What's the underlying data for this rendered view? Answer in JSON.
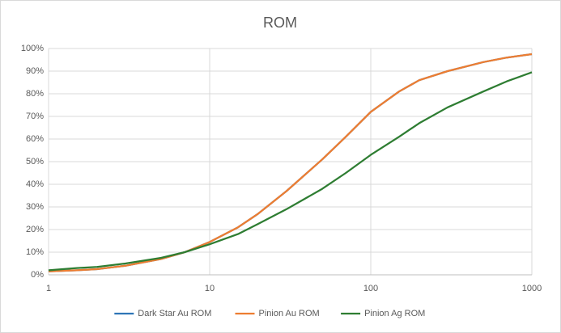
{
  "chart_data": {
    "type": "line",
    "title": "ROM",
    "x": [
      1,
      1.5,
      2,
      3,
      5,
      7,
      10,
      15,
      20,
      30,
      50,
      70,
      100,
      150,
      200,
      300,
      500,
      700,
      1000
    ],
    "series": [
      {
        "name": "Dark Star Au ROM",
        "color": "#2e75b6",
        "values": [
          1.5,
          2,
          2.5,
          4,
          7,
          10,
          14.5,
          21,
          27,
          37,
          51,
          61,
          72,
          81,
          86,
          90,
          94,
          96,
          97.5
        ]
      },
      {
        "name": "Pinion Au ROM",
        "color": "#ed7d31",
        "values": [
          1.5,
          2,
          2.5,
          4,
          7,
          10,
          14.5,
          21,
          27,
          37,
          51,
          61,
          72,
          81,
          86,
          90,
          94,
          96,
          97.5
        ]
      },
      {
        "name": "Pinion Ag ROM",
        "color": "#2e7d32",
        "values": [
          2,
          3,
          3.5,
          5,
          7.5,
          10,
          13.5,
          18,
          22.5,
          29,
          38,
          45,
          53,
          61,
          67,
          74,
          81,
          85.5,
          89.5
        ]
      }
    ],
    "xlim": [
      1,
      1000
    ],
    "xticks": [
      1,
      10,
      100,
      1000
    ],
    "xscale": "log",
    "ylim": [
      0,
      100
    ],
    "yticks": [
      {
        "value": 0,
        "label": "0%"
      },
      {
        "value": 10,
        "label": "10%"
      },
      {
        "value": 20,
        "label": "20%"
      },
      {
        "value": 30,
        "label": "30%"
      },
      {
        "value": 40,
        "label": "40%"
      },
      {
        "value": 50,
        "label": "50%"
      },
      {
        "value": 60,
        "label": "60%"
      },
      {
        "value": 70,
        "label": "70%"
      },
      {
        "value": 80,
        "label": "80%"
      },
      {
        "value": 90,
        "label": "90%"
      },
      {
        "value": 100,
        "label": "100%"
      }
    ],
    "grid": true,
    "legend": "bottom"
  }
}
